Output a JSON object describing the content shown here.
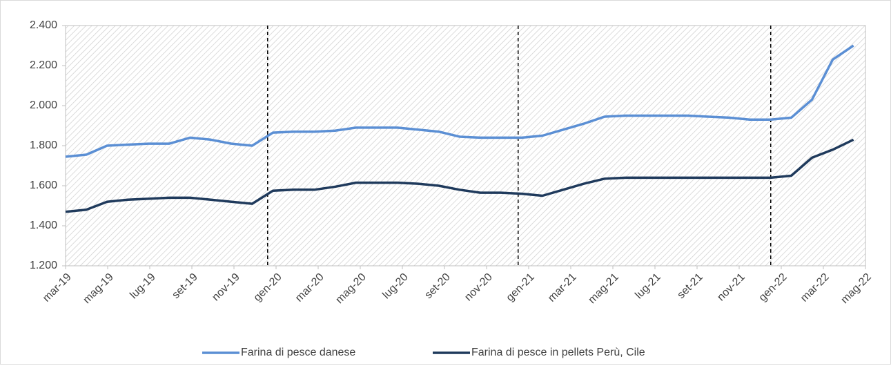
{
  "chart_data": {
    "type": "line",
    "categories": [
      "mar-19",
      null,
      "mag-19",
      null,
      "lug-19",
      null,
      "set-19",
      null,
      "nov-19",
      null,
      "gen-20",
      null,
      "mar-20",
      null,
      "mag-20",
      null,
      "lug-20",
      null,
      "set-20",
      null,
      "nov-20",
      null,
      "gen-21",
      null,
      "mar-21",
      null,
      "mag-21",
      null,
      "lug-21",
      null,
      "set-21",
      null,
      "nov-21",
      null,
      "gen-22",
      null,
      "mar-22",
      null,
      "mag-22"
    ],
    "series": [
      {
        "name": "Farina di pesce danese",
        "color": "#5b8fd4",
        "values": [
          1745,
          1755,
          1800,
          1805,
          1810,
          1810,
          1840,
          1830,
          1810,
          1800,
          1865,
          1870,
          1870,
          1875,
          1890,
          1890,
          1890,
          1880,
          1870,
          1845,
          1840,
          1840,
          1840,
          1850,
          1880,
          1910,
          1945,
          1950,
          1950,
          1950,
          1950,
          1945,
          1940,
          1930,
          1930,
          1940,
          2030,
          2230,
          2300
        ]
      },
      {
        "name": "Farina di pesce in pellets Perù, Cile",
        "color": "#1f3a5c",
        "values": [
          1470,
          1480,
          1520,
          1530,
          1535,
          1540,
          1540,
          1530,
          1520,
          1510,
          1575,
          1580,
          1580,
          1595,
          1615,
          1615,
          1615,
          1610,
          1600,
          1580,
          1565,
          1565,
          1560,
          1550,
          1580,
          1610,
          1635,
          1640,
          1640,
          1640,
          1640,
          1640,
          1640,
          1640,
          1640,
          1650,
          1740,
          1780,
          1830
        ]
      }
    ],
    "ylim": [
      1200,
      2400
    ],
    "yticks": [
      {
        "value": 1200,
        "label": "1.200"
      },
      {
        "value": 1400,
        "label": "1.400"
      },
      {
        "value": 1600,
        "label": "1.600"
      },
      {
        "value": 1800,
        "label": "1.800"
      },
      {
        "value": 2000,
        "label": "2.000"
      },
      {
        "value": 2200,
        "label": "2.200"
      },
      {
        "value": 2400,
        "label": "2.400"
      }
    ],
    "grid": false,
    "legend": "bottom"
  }
}
